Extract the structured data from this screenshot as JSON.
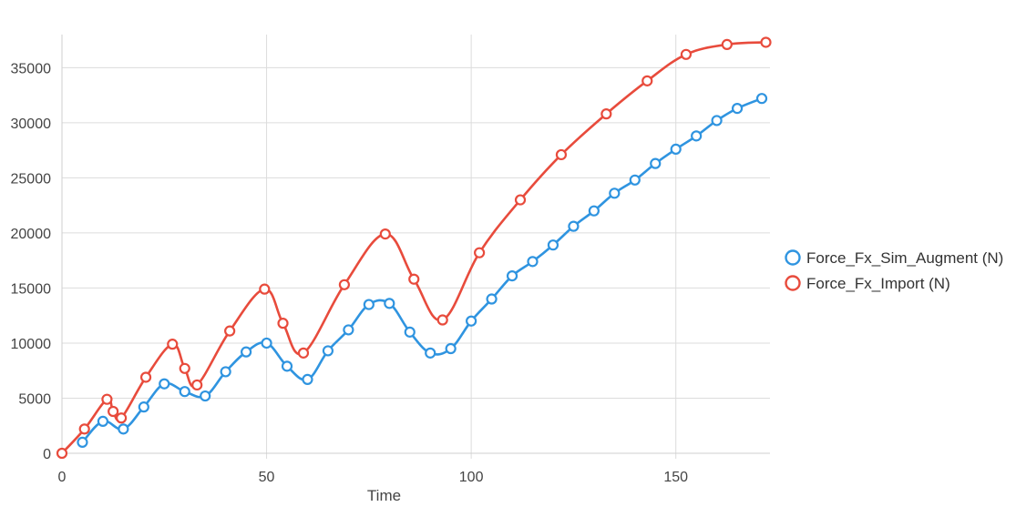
{
  "chart_data": {
    "type": "line",
    "title": "",
    "xlabel": "Time",
    "ylabel": "",
    "xlim": [
      0,
      173
    ],
    "ylim": [
      0,
      38000
    ],
    "x_ticks": [
      0,
      50,
      100,
      150
    ],
    "y_ticks": [
      0,
      5000,
      10000,
      15000,
      20000,
      25000,
      30000,
      35000
    ],
    "grid": true,
    "legend_position": "right",
    "series": [
      {
        "name": "Force_Fx_Sim_Augment (N)",
        "color": "#2f94e0",
        "points": [
          [
            5,
            1000
          ],
          [
            10,
            2900
          ],
          [
            15,
            2200
          ],
          [
            20,
            4200
          ],
          [
            25,
            6300
          ],
          [
            30,
            5600
          ],
          [
            35,
            5200
          ],
          [
            40,
            7400
          ],
          [
            45,
            9200
          ],
          [
            50,
            10000
          ],
          [
            55,
            7900
          ],
          [
            60,
            6700
          ],
          [
            65,
            9300
          ],
          [
            70,
            11200
          ],
          [
            75,
            13500
          ],
          [
            80,
            13600
          ],
          [
            85,
            11000
          ],
          [
            90,
            9100
          ],
          [
            95,
            9500
          ],
          [
            100,
            12000
          ],
          [
            105,
            14000
          ],
          [
            110,
            16100
          ],
          [
            115,
            17400
          ],
          [
            120,
            18900
          ],
          [
            125,
            20600
          ],
          [
            130,
            22000
          ],
          [
            135,
            23600
          ],
          [
            140,
            24800
          ],
          [
            145,
            26300
          ],
          [
            150,
            27600
          ],
          [
            155,
            28800
          ],
          [
            160,
            30200
          ],
          [
            165,
            31300
          ],
          [
            171,
            32200
          ]
        ]
      },
      {
        "name": "Force_Fx_Import (N)",
        "color": "#e84b3c",
        "points": [
          [
            0,
            0
          ],
          [
            5.5,
            2200
          ],
          [
            11,
            4900
          ],
          [
            12.5,
            3800
          ],
          [
            14.5,
            3200
          ],
          [
            20.5,
            6900
          ],
          [
            27,
            9900
          ],
          [
            30,
            7700
          ],
          [
            33,
            6200
          ],
          [
            41,
            11100
          ],
          [
            49.5,
            14900
          ],
          [
            54,
            11800
          ],
          [
            59,
            9100
          ],
          [
            69,
            15300
          ],
          [
            79,
            19900
          ],
          [
            86,
            15800
          ],
          [
            93,
            12100
          ],
          [
            102,
            18200
          ],
          [
            112,
            23000
          ],
          [
            122,
            27100
          ],
          [
            133,
            30800
          ],
          [
            143,
            33800
          ],
          [
            152.5,
            36200
          ],
          [
            162.5,
            37100
          ],
          [
            172,
            37300
          ]
        ]
      }
    ]
  }
}
